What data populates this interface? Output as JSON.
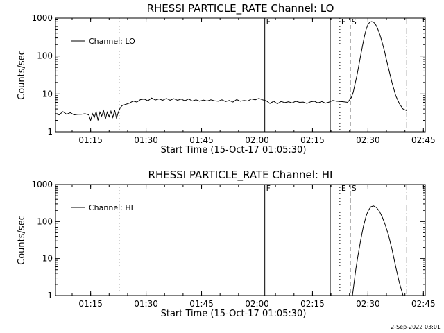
{
  "timestamp": "2-Sep-2022 03:01",
  "chart_data": [
    {
      "type": "line",
      "title": "RHESSI PARTICLE_RATE Channel: LO",
      "xlabel": "Start Time (15-Oct-17 01:05:30)",
      "ylabel": "Counts/sec",
      "yscale": "log",
      "xlim": [
        0,
        100
      ],
      "ylim": [
        1,
        1000
      ],
      "x_ticks": [
        9.5,
        24.5,
        39.5,
        54.5,
        69.5,
        84.5,
        99.5
      ],
      "x_tick_labels": [
        "01:15",
        "01:30",
        "01:45",
        "02:00",
        "02:15",
        "02:30",
        "02:45"
      ],
      "y_ticks": [
        1,
        10,
        100,
        1000
      ],
      "y_tick_labels": [
        "1",
        "10",
        "100",
        "1000"
      ],
      "legend": {
        "label": "Channel: LO",
        "placement": "top-left"
      },
      "markers": [
        {
          "x": 17.2,
          "label": "",
          "style": "dotted"
        },
        {
          "x": 56.6,
          "label": "F",
          "style": "solid"
        },
        {
          "x": 74.3,
          "label": "",
          "style": "solid"
        },
        {
          "x": 76.9,
          "label": "E",
          "style": "dotted"
        },
        {
          "x": 79.7,
          "label": "S",
          "style": "dashed"
        },
        {
          "x": 95.0,
          "label": "",
          "style": "dashdot"
        }
      ],
      "series": [
        {
          "name": "Channel: LO",
          "x": [
            0,
            1,
            2,
            3,
            4,
            5,
            6,
            7,
            8,
            9,
            9.5,
            10,
            10.5,
            11,
            11.5,
            12,
            12.5,
            13,
            13.5,
            14,
            14.5,
            15,
            15.5,
            16,
            16.5,
            17,
            17.5,
            18,
            19,
            20,
            21,
            22,
            23,
            24,
            25,
            26,
            27,
            28,
            29,
            30,
            31,
            32,
            33,
            34,
            35,
            36,
            37,
            38,
            39,
            40,
            41,
            42,
            43,
            44,
            45,
            46,
            47,
            48,
            49,
            50,
            51,
            52,
            53,
            54,
            55,
            56,
            57,
            58,
            59,
            60,
            61,
            62,
            63,
            64,
            65,
            66,
            67,
            68,
            69,
            70,
            71,
            72,
            73,
            74,
            75,
            76,
            77,
            78,
            79,
            80,
            80.5,
            81,
            81.5,
            82,
            82.5,
            83,
            83.5,
            84,
            84.5,
            85,
            85.5,
            86,
            86.5,
            87,
            87.5,
            88,
            88.5,
            89,
            89.5,
            90,
            91,
            92,
            93,
            94,
            95
          ],
          "y": [
            3.0,
            2.8,
            3.4,
            2.9,
            3.2,
            2.8,
            2.9,
            2.9,
            3.0,
            2.8,
            2.0,
            3.0,
            2.4,
            3.4,
            2.0,
            3.3,
            2.6,
            3.6,
            2.2,
            3.3,
            2.5,
            3.5,
            2.4,
            3.7,
            2.3,
            3.3,
            4.3,
            4.9,
            5.3,
            5.7,
            6.5,
            6.1,
            7.1,
            7.3,
            6.6,
            7.8,
            6.9,
            7.4,
            6.8,
            7.6,
            6.8,
            7.5,
            6.8,
            7.3,
            6.6,
            7.4,
            6.5,
            7.0,
            6.4,
            6.9,
            6.5,
            7.0,
            6.6,
            6.4,
            7.0,
            6.3,
            6.7,
            6.1,
            7.1,
            6.4,
            6.7,
            6.5,
            7.4,
            7.0,
            7.6,
            7.0,
            6.6,
            5.6,
            6.4,
            5.5,
            6.3,
            5.9,
            6.2,
            5.8,
            6.4,
            6.0,
            6.1,
            5.6,
            6.2,
            6.4,
            5.8,
            6.3,
            5.7,
            6.1,
            6.7,
            6.4,
            6.3,
            6.2,
            6.0,
            8.0,
            11.0,
            18.0,
            30.0,
            55.0,
            100.0,
            180.0,
            320.0,
            500.0,
            680.0,
            780.0,
            810.0,
            780.0,
            700.0,
            560.0,
            420.0,
            300.0,
            200.0,
            130.0,
            80.0,
            50.0,
            20.0,
            9.0,
            5.5,
            4.0,
            3.6
          ]
        }
      ]
    },
    {
      "type": "line",
      "title": "RHESSI PARTICLE_RATE Channel: HI",
      "xlabel": "Start Time (15-Oct-17 01:05:30)",
      "ylabel": "Counts/sec",
      "yscale": "log",
      "xlim": [
        0,
        100
      ],
      "ylim": [
        1,
        1000
      ],
      "x_ticks": [
        9.5,
        24.5,
        39.5,
        54.5,
        69.5,
        84.5,
        99.5
      ],
      "x_tick_labels": [
        "01:15",
        "01:30",
        "01:45",
        "02:00",
        "02:15",
        "02:30",
        "02:45"
      ],
      "y_ticks": [
        1,
        10,
        100,
        1000
      ],
      "y_tick_labels": [
        "1",
        "10",
        "100",
        "1000"
      ],
      "legend": {
        "label": "Channel: HI",
        "placement": "top-left"
      },
      "markers": [
        {
          "x": 17.2,
          "label": "",
          "style": "dotted"
        },
        {
          "x": 56.6,
          "label": "F",
          "style": "solid"
        },
        {
          "x": 74.3,
          "label": "",
          "style": "solid"
        },
        {
          "x": 76.9,
          "label": "E",
          "style": "dotted"
        },
        {
          "x": 79.7,
          "label": "S",
          "style": "dashed"
        },
        {
          "x": 95.0,
          "label": "",
          "style": "dashdot"
        }
      ],
      "series": [
        {
          "name": "Channel: HI",
          "x": [
            80.3,
            80.7,
            81.2,
            81.8,
            82.5,
            83.2,
            84.0,
            84.6,
            85.3,
            86.0,
            86.8,
            87.6,
            88.4,
            89.2,
            90.0,
            91.0,
            92.0,
            93.0,
            94.0
          ],
          "y": [
            1.0,
            2.0,
            5.0,
            12.0,
            30.0,
            70.0,
            140.0,
            200.0,
            250.0,
            265.0,
            240.0,
            190.0,
            130.0,
            80.0,
            45.0,
            18.0,
            6.0,
            2.2,
            1.0
          ]
        }
      ]
    }
  ]
}
